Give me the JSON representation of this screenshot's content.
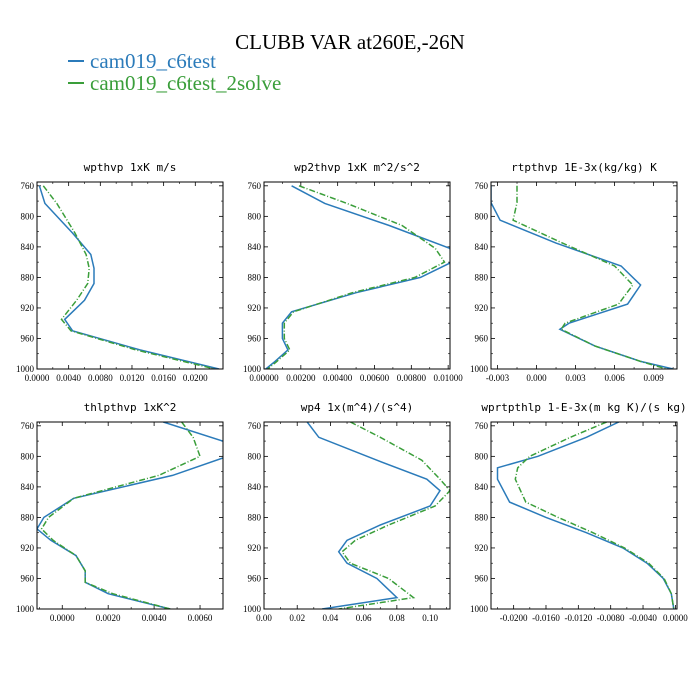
{
  "title": "CLUBB VAR at260E,-26N",
  "legend": [
    {
      "name": "cam019_c6test",
      "color": "#2b7bba"
    },
    {
      "name": "cam019_c6test_2solve",
      "color": "#3a9e3a"
    }
  ],
  "chart_data": [
    {
      "type": "line",
      "title": "wpthvp  1xK m/s",
      "xlim": [
        0,
        0.0235
      ],
      "ylim": [
        1000,
        755
      ],
      "xticks": [
        0,
        0.004,
        0.008,
        0.012,
        0.016,
        0.02
      ],
      "xtick_labels": [
        "0.0000",
        "0.0040",
        "0.0080",
        "0.0120",
        "0.0160",
        "0.0200"
      ],
      "yticks": [
        760,
        800,
        840,
        880,
        920,
        960,
        1000
      ],
      "ytick_labels": [
        "760",
        "800",
        "840",
        "880",
        "920",
        "960",
        "1000"
      ],
      "series": [
        {
          "name": "cam019_c6test",
          "y": [
            760,
            783,
            822,
            850,
            868,
            888,
            910,
            935,
            950,
            975,
            990,
            1000
          ],
          "x": [
            0.0003,
            0.001,
            0.0045,
            0.0068,
            0.0072,
            0.0072,
            0.006,
            0.0035,
            0.0045,
            0.013,
            0.019,
            0.023
          ]
        },
        {
          "name": "cam019_c6test_2solve",
          "y": [
            760,
            783,
            822,
            850,
            868,
            888,
            910,
            935,
            950,
            975,
            990,
            1000
          ],
          "x": [
            0.0008,
            0.0025,
            0.0048,
            0.0062,
            0.0066,
            0.0064,
            0.005,
            0.0031,
            0.0043,
            0.0125,
            0.0185,
            0.0225
          ]
        }
      ]
    },
    {
      "type": "line",
      "title": "wp2thvp  1xK m^2/s^2",
      "xlim": [
        0,
        0.0101
      ],
      "ylim": [
        1000,
        755
      ],
      "xticks": [
        0,
        0.002,
        0.004,
        0.006,
        0.008,
        0.01
      ],
      "xtick_labels": [
        "0.00000",
        "0.00200",
        "0.00400",
        "0.00600",
        "0.00800",
        "0.01000"
      ],
      "yticks": [
        760,
        800,
        840,
        880,
        920,
        960,
        1000
      ],
      "ytick_labels": [
        "760",
        "800",
        "840",
        "880",
        "920",
        "960",
        "1000"
      ],
      "series": [
        {
          "name": "cam019_c6test",
          "y": [
            760,
            783,
            812,
            842,
            860,
            880,
            900,
            925,
            940,
            960,
            975,
            990,
            1000
          ],
          "x": [
            0.0015,
            0.0033,
            0.0068,
            0.0101,
            0.0102,
            0.0085,
            0.005,
            0.0015,
            0.001,
            0.001,
            0.0013,
            0.0006,
            0.0001
          ]
        },
        {
          "name": "cam019_c6test_2solve",
          "y": [
            760,
            783,
            812,
            842,
            860,
            880,
            900,
            925,
            940,
            960,
            975,
            990,
            1000
          ],
          "x": [
            0.0019,
            0.0045,
            0.0075,
            0.0093,
            0.0098,
            0.0082,
            0.0048,
            0.0016,
            0.0011,
            0.0011,
            0.0014,
            0.0007,
            0.0002
          ]
        }
      ]
    },
    {
      "type": "line",
      "title": "rtpthvp  1E-3x(kg/kg) K",
      "xlim": [
        -0.0035,
        0.0108
      ],
      "ylim": [
        1000,
        755
      ],
      "xticks": [
        -0.003,
        0,
        0.003,
        0.006,
        0.009
      ],
      "xtick_labels": [
        "-0.003",
        "0.000",
        "0.003",
        "0.006",
        "0.009"
      ],
      "yticks": [
        760,
        800,
        840,
        880,
        920,
        960,
        1000
      ],
      "ytick_labels": [
        "760",
        "800",
        "840",
        "880",
        "920",
        "960",
        "1000"
      ],
      "series": [
        {
          "name": "cam019_c6test",
          "y": [
            760,
            782,
            805,
            835,
            865,
            890,
            915,
            940,
            948,
            970,
            990,
            1000
          ],
          "x": [
            -0.0035,
            -0.0035,
            -0.0028,
            0.0015,
            0.0065,
            0.008,
            0.007,
            0.0025,
            0.0018,
            0.0045,
            0.008,
            0.0105
          ]
        },
        {
          "name": "cam019_c6test_2solve",
          "y": [
            760,
            782,
            805,
            835,
            865,
            890,
            915,
            940,
            948,
            970,
            990,
            1000
          ],
          "x": [
            -0.0015,
            -0.0015,
            -0.0018,
            0.002,
            0.006,
            0.0074,
            0.0063,
            0.0022,
            0.0019,
            0.0045,
            0.008,
            0.01
          ]
        }
      ]
    },
    {
      "type": "line",
      "title": "thlpthvp  1xK^2",
      "xlim": [
        -0.0011,
        0.007
      ],
      "ylim": [
        1000,
        755
      ],
      "xticks": [
        0,
        0.002,
        0.004,
        0.006
      ],
      "xtick_labels": [
        "0.0000",
        "0.0020",
        "0.0040",
        "0.0060"
      ],
      "yticks": [
        760,
        800,
        840,
        880,
        920,
        960,
        1000
      ],
      "ytick_labels": [
        "760",
        "800",
        "840",
        "880",
        "920",
        "960",
        "1000"
      ],
      "series": [
        {
          "name": "cam019_c6test",
          "y": [
            755,
            780,
            800,
            825,
            855,
            880,
            895,
            910,
            930,
            950,
            965,
            980,
            1000
          ],
          "x": [
            0.0044,
            0.007,
            0.0072,
            0.0048,
            0.0005,
            -0.0008,
            -0.0011,
            -0.0005,
            0.0006,
            0.001,
            0.001,
            0.002,
            0.0047
          ]
        },
        {
          "name": "cam019_c6test_2solve",
          "y": [
            755,
            775,
            800,
            825,
            855,
            880,
            895,
            910,
            930,
            950,
            965,
            980,
            1000
          ],
          "x": [
            0.0052,
            0.0057,
            0.006,
            0.0042,
            0.0005,
            -0.0006,
            -0.0009,
            -0.0004,
            0.0006,
            0.001,
            0.001,
            0.0022,
            0.0047
          ]
        }
      ]
    },
    {
      "type": "line",
      "title": "wp4  1x(m^4)/(s^4)",
      "xlim": [
        0,
        0.112
      ],
      "ylim": [
        1000,
        755
      ],
      "xticks": [
        0,
        0.02,
        0.04,
        0.06,
        0.08,
        0.1
      ],
      "xtick_labels": [
        "0.00",
        "0.02",
        "0.04",
        "0.06",
        "0.08",
        "0.10"
      ],
      "yticks": [
        760,
        800,
        840,
        880,
        920,
        960,
        1000
      ],
      "ytick_labels": [
        "760",
        "800",
        "840",
        "880",
        "920",
        "960",
        "1000"
      ],
      "series": [
        {
          "name": "cam019_c6test",
          "y": [
            755,
            775,
            805,
            830,
            845,
            865,
            890,
            910,
            925,
            940,
            960,
            985,
            1000
          ],
          "x": [
            0.026,
            0.033,
            0.068,
            0.098,
            0.106,
            0.1,
            0.07,
            0.05,
            0.045,
            0.05,
            0.068,
            0.08,
            0.035
          ]
        },
        {
          "name": "cam019_c6test_2solve",
          "y": [
            755,
            775,
            805,
            830,
            845,
            865,
            890,
            910,
            925,
            940,
            960,
            985,
            1000
          ],
          "x": [
            0.052,
            0.07,
            0.095,
            0.106,
            0.112,
            0.103,
            0.075,
            0.055,
            0.047,
            0.052,
            0.075,
            0.09,
            0.045
          ]
        }
      ]
    },
    {
      "type": "line",
      "title": "wprtpthlp  1-E-3x(m kg K)/(s kg)",
      "xlim": [
        -0.0228,
        0.0002
      ],
      "ylim": [
        1000,
        755
      ],
      "xticks": [
        -0.02,
        -0.016,
        -0.012,
        -0.008,
        -0.004,
        0
      ],
      "xtick_labels": [
        "-0.0200",
        "-0.0160",
        "-0.0120",
        "-0.0080",
        "-0.0040",
        "0.0000"
      ],
      "yticks": [
        760,
        800,
        840,
        880,
        920,
        960,
        1000
      ],
      "ytick_labels": [
        "760",
        "800",
        "840",
        "880",
        "920",
        "960",
        "1000"
      ],
      "series": [
        {
          "name": "cam019_c6test",
          "y": [
            755,
            775,
            800,
            815,
            830,
            860,
            880,
            900,
            920,
            940,
            960,
            980,
            1000
          ],
          "x": [
            -0.007,
            -0.011,
            -0.017,
            -0.022,
            -0.022,
            -0.0205,
            -0.016,
            -0.011,
            -0.0065,
            -0.0035,
            -0.0015,
            -0.0005,
            -0.0002
          ]
        },
        {
          "name": "cam019_c6test_2solve",
          "y": [
            755,
            775,
            800,
            815,
            830,
            860,
            880,
            900,
            920,
            940,
            960,
            980,
            1000
          ],
          "x": [
            -0.0085,
            -0.013,
            -0.018,
            -0.0195,
            -0.0198,
            -0.0185,
            -0.0145,
            -0.0102,
            -0.0063,
            -0.0033,
            -0.0014,
            -0.0005,
            -0.0002
          ]
        }
      ]
    }
  ]
}
